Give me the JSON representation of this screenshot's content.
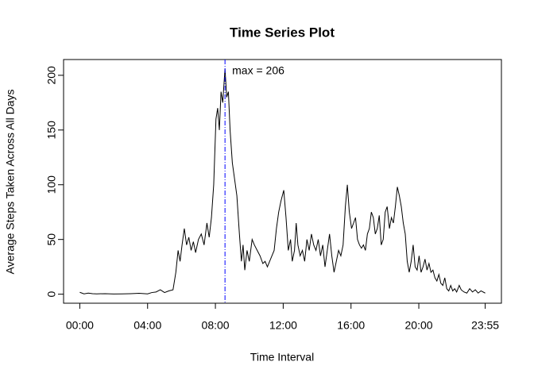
{
  "chart_data": {
    "type": "line",
    "title": "Time Series Plot",
    "xlabel": "Time Interval",
    "ylabel": "Average Steps Taken Across All Days",
    "annotation": "max =  206",
    "vline": {
      "x": 514,
      "color": "#0000ff"
    },
    "x": [
      0,
      15,
      30,
      45,
      60,
      90,
      120,
      150,
      180,
      210,
      240,
      255,
      270,
      285,
      300,
      315,
      330,
      340,
      348,
      355,
      362,
      370,
      378,
      386,
      394,
      402,
      410,
      420,
      430,
      440,
      450,
      458,
      466,
      474,
      482,
      488,
      494,
      500,
      506,
      514,
      520,
      526,
      532,
      540,
      548,
      556,
      565,
      572,
      578,
      584,
      592,
      600,
      610,
      618,
      628,
      638,
      648,
      656,
      664,
      672,
      680,
      688,
      696,
      704,
      712,
      722,
      730,
      738,
      746,
      752,
      760,
      766,
      772,
      780,
      788,
      796,
      804,
      812,
      820,
      828,
      836,
      844,
      852,
      860,
      868,
      876,
      884,
      892,
      900,
      908,
      916,
      924,
      932,
      940,
      947,
      954,
      962,
      969,
      976,
      983,
      990,
      997,
      1004,
      1011,
      1018,
      1025,
      1032,
      1039,
      1046,
      1053,
      1060,
      1067,
      1074,
      1081,
      1088,
      1096,
      1103,
      1110,
      1117,
      1124,
      1131,
      1138,
      1145,
      1152,
      1159,
      1166,
      1173,
      1180,
      1187,
      1194,
      1201,
      1208,
      1215,
      1222,
      1229,
      1236,
      1243,
      1250,
      1257,
      1264,
      1271,
      1278,
      1285,
      1292,
      1299,
      1306,
      1313,
      1320,
      1327,
      1334,
      1343,
      1350,
      1360,
      1370,
      1380,
      1390,
      1400,
      1410,
      1420,
      1435
    ],
    "series": [
      {
        "name": "steps",
        "color": "#000000",
        "values": [
          1.7,
          0.3,
          1,
          0.5,
          0.3,
          0.5,
          0.2,
          0.3,
          0.5,
          0.8,
          0.3,
          1.5,
          2,
          4,
          1.5,
          3,
          4,
          20,
          40,
          30,
          45,
          60,
          45,
          52,
          40,
          48,
          38,
          50,
          55,
          45,
          65,
          52,
          70,
          100,
          160,
          170,
          150,
          185,
          175,
          206,
          180,
          185,
          150,
          120,
          105,
          90,
          55,
          30,
          45,
          22,
          40,
          30,
          50,
          45,
          40,
          35,
          28,
          30,
          25,
          30,
          35,
          40,
          60,
          75,
          85,
          95,
          70,
          40,
          50,
          30,
          40,
          65,
          45,
          35,
          40,
          30,
          50,
          40,
          55,
          45,
          40,
          50,
          35,
          45,
          25,
          40,
          55,
          35,
          20,
          30,
          40,
          35,
          45,
          80,
          100,
          75,
          60,
          65,
          70,
          50,
          45,
          42,
          45,
          40,
          55,
          60,
          75,
          70,
          55,
          60,
          72,
          45,
          50,
          75,
          80,
          60,
          70,
          65,
          80,
          98,
          90,
          80,
          65,
          55,
          30,
          20,
          30,
          45,
          25,
          22,
          35,
          20,
          25,
          32,
          22,
          28,
          20,
          22,
          15,
          12,
          18,
          10,
          8,
          15,
          5,
          3,
          8,
          3,
          5,
          2,
          8,
          4,
          2,
          1,
          5,
          2,
          4,
          1,
          3,
          1
        ]
      }
    ],
    "xlim": [
      -57.4,
      1492.4
    ],
    "xticks": [
      {
        "value": 0,
        "label": "00:00"
      },
      {
        "value": 240,
        "label": "04:00"
      },
      {
        "value": 480,
        "label": "08:00"
      },
      {
        "value": 720,
        "label": "12:00"
      },
      {
        "value": 960,
        "label": "16:00"
      },
      {
        "value": 1200,
        "label": "20:00"
      },
      {
        "value": 1435,
        "label": "23:55"
      }
    ],
    "ylim": [
      -8.25,
      214.4
    ],
    "yticks": [
      0,
      50,
      100,
      150,
      200
    ]
  }
}
